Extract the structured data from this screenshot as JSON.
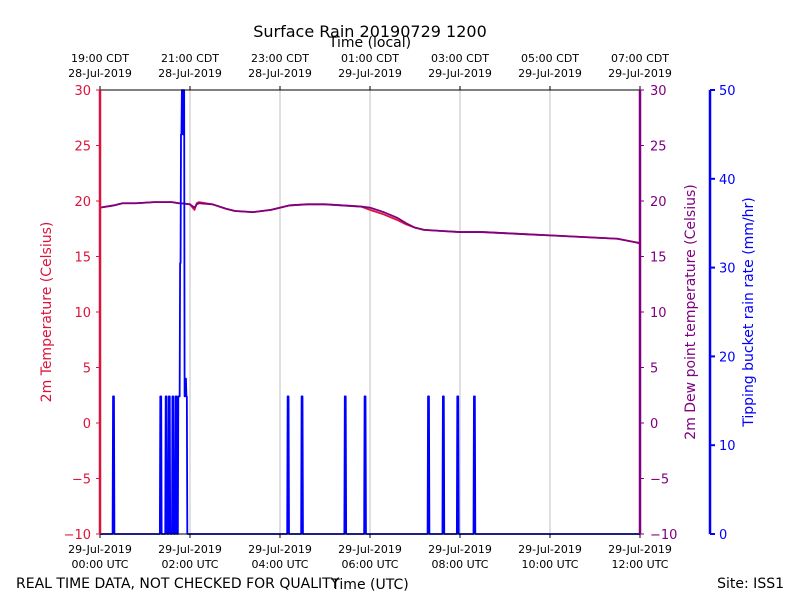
{
  "chart_data": {
    "type": "line",
    "title": "Surface Rain 20190729 1200",
    "top_axis_label": "Time (local)",
    "xlabel": "Time (UTC)",
    "footer_left": "REAL TIME DATA, NOT CHECKED FOR QUALITY",
    "footer_right": "Site: ISS1",
    "xlim": [
      0,
      12
    ],
    "bottom_ticks": [
      {
        "x": 0,
        "line1": "29-Jul-2019",
        "line2": "00:00 UTC"
      },
      {
        "x": 2,
        "line1": "29-Jul-2019",
        "line2": "02:00 UTC"
      },
      {
        "x": 4,
        "line1": "29-Jul-2019",
        "line2": "04:00 UTC"
      },
      {
        "x": 6,
        "line1": "29-Jul-2019",
        "line2": "06:00 UTC"
      },
      {
        "x": 8,
        "line1": "29-Jul-2019",
        "line2": "08:00 UTC"
      },
      {
        "x": 10,
        "line1": "29-Jul-2019",
        "line2": "10:00 UTC"
      },
      {
        "x": 12,
        "line1": "29-Jul-2019",
        "line2": "12:00 UTC"
      }
    ],
    "top_ticks": [
      {
        "x": 0,
        "line1": "19:00 CDT",
        "line2": "28-Jul-2019"
      },
      {
        "x": 2,
        "line1": "21:00 CDT",
        "line2": "28-Jul-2019"
      },
      {
        "x": 4,
        "line1": "23:00 CDT",
        "line2": "28-Jul-2019"
      },
      {
        "x": 6,
        "line1": "01:00 CDT",
        "line2": "29-Jul-2019"
      },
      {
        "x": 8,
        "line1": "03:00 CDT",
        "line2": "29-Jul-2019"
      },
      {
        "x": 10,
        "line1": "05:00 CDT",
        "line2": "29-Jul-2019"
      },
      {
        "x": 12,
        "line1": "07:00 CDT",
        "line2": "29-Jul-2019"
      }
    ],
    "left_axis": {
      "label": "2m Temperature (Celsius)",
      "ylim": [
        -10,
        30
      ],
      "ticks": [
        -10,
        -5,
        0,
        5,
        10,
        15,
        20,
        25,
        30
      ],
      "tick_labels": [
        "−10",
        "−5",
        "0",
        "5",
        "10",
        "15",
        "20",
        "25",
        "30"
      ],
      "color": "#dc143c"
    },
    "right_axis_1": {
      "label": "2m Dew point temperature (Celsius)",
      "ylim": [
        -10,
        30
      ],
      "ticks": [
        -10,
        -5,
        0,
        5,
        10,
        15,
        20,
        25,
        30
      ],
      "tick_labels": [
        "−10",
        "−5",
        "0",
        "5",
        "10",
        "15",
        "20",
        "25",
        "30"
      ],
      "color": "#800080"
    },
    "right_axis_2": {
      "label": "Tipping bucket rain rate (mm/hr)",
      "ylim": [
        0,
        50
      ],
      "ticks": [
        0,
        10,
        20,
        30,
        40,
        50
      ],
      "tick_labels": [
        "0",
        "10",
        "20",
        "30",
        "40",
        "50"
      ],
      "color": "#0000ff"
    },
    "series": [
      {
        "name": "2m Temperature",
        "axis": "left",
        "color": "#dc143c",
        "x": [
          0,
          0.3,
          0.5,
          0.8,
          1.2,
          1.6,
          1.75,
          1.8,
          2.0,
          2.1,
          2.15,
          2.2,
          2.5,
          2.8,
          3.0,
          3.4,
          3.8,
          4.2,
          4.6,
          5.0,
          5.4,
          5.8,
          6.0,
          6.3,
          6.6,
          6.8,
          7.0,
          7.2,
          7.6,
          8.0,
          8.5,
          9.0,
          9.5,
          10.0,
          10.5,
          11.0,
          11.5,
          12.0
        ],
        "y": [
          19.4,
          19.6,
          19.8,
          19.8,
          19.9,
          19.9,
          19.8,
          19.8,
          19.7,
          19.2,
          19.8,
          19.9,
          19.7,
          19.3,
          19.1,
          19.0,
          19.2,
          19.6,
          19.7,
          19.7,
          19.6,
          19.5,
          19.2,
          18.8,
          18.3,
          17.9,
          17.6,
          17.4,
          17.3,
          17.2,
          17.2,
          17.1,
          17.0,
          16.9,
          16.8,
          16.7,
          16.6,
          16.2
        ]
      },
      {
        "name": "2m Dew point temperature",
        "axis": "right1",
        "color": "#800080",
        "x": [
          0,
          0.3,
          0.5,
          0.8,
          1.2,
          1.6,
          1.75,
          1.8,
          2.0,
          2.1,
          2.15,
          2.2,
          2.5,
          2.8,
          3.0,
          3.4,
          3.8,
          4.2,
          4.6,
          5.0,
          5.4,
          5.8,
          6.0,
          6.3,
          6.6,
          6.8,
          7.0,
          7.2,
          7.6,
          8.0,
          8.5,
          9.0,
          9.5,
          10.0,
          10.5,
          11.0,
          11.5,
          12.0
        ],
        "y": [
          19.4,
          19.6,
          19.8,
          19.8,
          19.9,
          19.9,
          19.8,
          19.8,
          19.7,
          19.4,
          19.7,
          19.8,
          19.7,
          19.3,
          19.1,
          19.0,
          19.2,
          19.6,
          19.7,
          19.7,
          19.6,
          19.5,
          19.4,
          19.0,
          18.5,
          18.0,
          17.6,
          17.4,
          17.3,
          17.2,
          17.2,
          17.1,
          17.0,
          16.9,
          16.8,
          16.7,
          16.6,
          16.2
        ]
      },
      {
        "name": "Tipping bucket rain rate",
        "axis": "right2",
        "color": "#0000ff",
        "x": [
          0,
          0.28,
          0.29,
          0.31,
          0.32,
          1.33,
          1.34,
          1.36,
          1.37,
          1.45,
          1.46,
          1.48,
          1.49,
          1.52,
          1.53,
          1.55,
          1.56,
          1.6,
          1.61,
          1.63,
          1.64,
          1.67,
          1.68,
          1.7,
          1.71,
          1.73,
          1.74,
          1.76,
          1.77,
          1.78,
          1.79,
          1.8,
          1.81,
          1.82,
          1.83,
          1.84,
          1.85,
          1.86,
          1.87,
          1.88,
          1.89,
          1.9,
          1.91,
          1.92,
          1.93,
          1.94,
          1.95,
          1.96,
          1.97,
          4.16,
          4.17,
          4.19,
          4.2,
          4.47,
          4.48,
          4.5,
          4.51,
          5.43,
          5.44,
          5.46,
          5.47,
          5.87,
          5.88,
          5.9,
          5.91,
          7.28,
          7.29,
          7.31,
          7.32,
          7.61,
          7.62,
          7.64,
          7.65,
          7.93,
          7.94,
          7.96,
          7.97,
          8.3,
          8.31,
          8.33,
          8.34,
          12.0
        ],
        "y": [
          0,
          0,
          15.5,
          15.5,
          0,
          0,
          15.5,
          15.5,
          0,
          0,
          15.5,
          15.5,
          0,
          0,
          15.5,
          15.5,
          0,
          0,
          15.5,
          15.5,
          0,
          0,
          15.5,
          15.5,
          0,
          0,
          15.5,
          15.5,
          15.5,
          30.5,
          30.5,
          45,
          45,
          50,
          50,
          45,
          45,
          50,
          50,
          15.5,
          15.5,
          17.5,
          17.5,
          15.5,
          15.5,
          0,
          0,
          0,
          0,
          0,
          15.5,
          15.5,
          0,
          0,
          15.5,
          15.5,
          0,
          0,
          15.5,
          15.5,
          0,
          0,
          15.5,
          15.5,
          0,
          0,
          15.5,
          15.5,
          0,
          0,
          15.5,
          15.5,
          0,
          0,
          15.5,
          15.5,
          0,
          0,
          15.5,
          15.5,
          0,
          0
        ]
      }
    ]
  }
}
